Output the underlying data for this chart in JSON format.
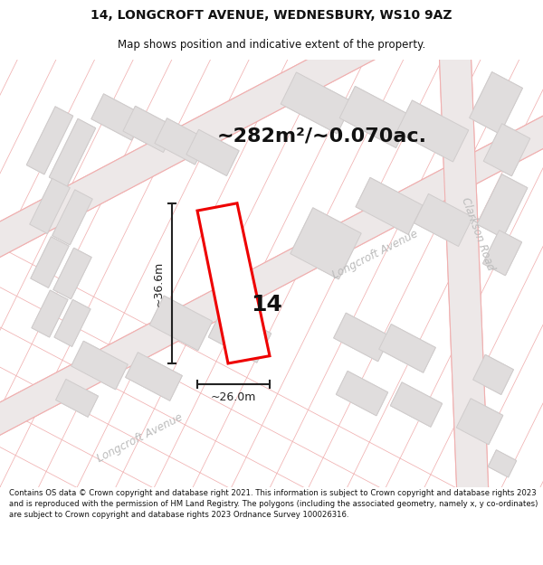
{
  "title": "14, LONGCROFT AVENUE, WEDNESBURY, WS10 9AZ",
  "subtitle": "Map shows position and indicative extent of the property.",
  "area_text": "~282m²/~0.070ac.",
  "label_14": "14",
  "dim_vertical": "~36.6m",
  "dim_horizontal": "~26.0m",
  "street_bottom": "Longcroft Avenue",
  "street_right": "Longcroft Avenue",
  "street_far_right": "Clarkson Road",
  "copyright": "Contains OS data © Crown copyright and database right 2021. This information is subject to Crown copyright and database rights 2023 and is reproduced with the permission of HM Land Registry. The polygons (including the associated geometry, namely x, y co-ordinates) are subject to Crown copyright and database rights 2023 Ordnance Survey 100026316.",
  "map_bg": "#f5f2f2",
  "property_edge": "#ee0000",
  "property_fill": "#ffffff",
  "building_fill": "#e0dddd",
  "building_edge": "#d0cccc",
  "plot_line": "#f0b0b0",
  "dim_color": "#222222",
  "street_color": "#bbbbbb",
  "text_color": "#111111",
  "header_bg": "#ffffff",
  "footer_bg": "#ffffff"
}
